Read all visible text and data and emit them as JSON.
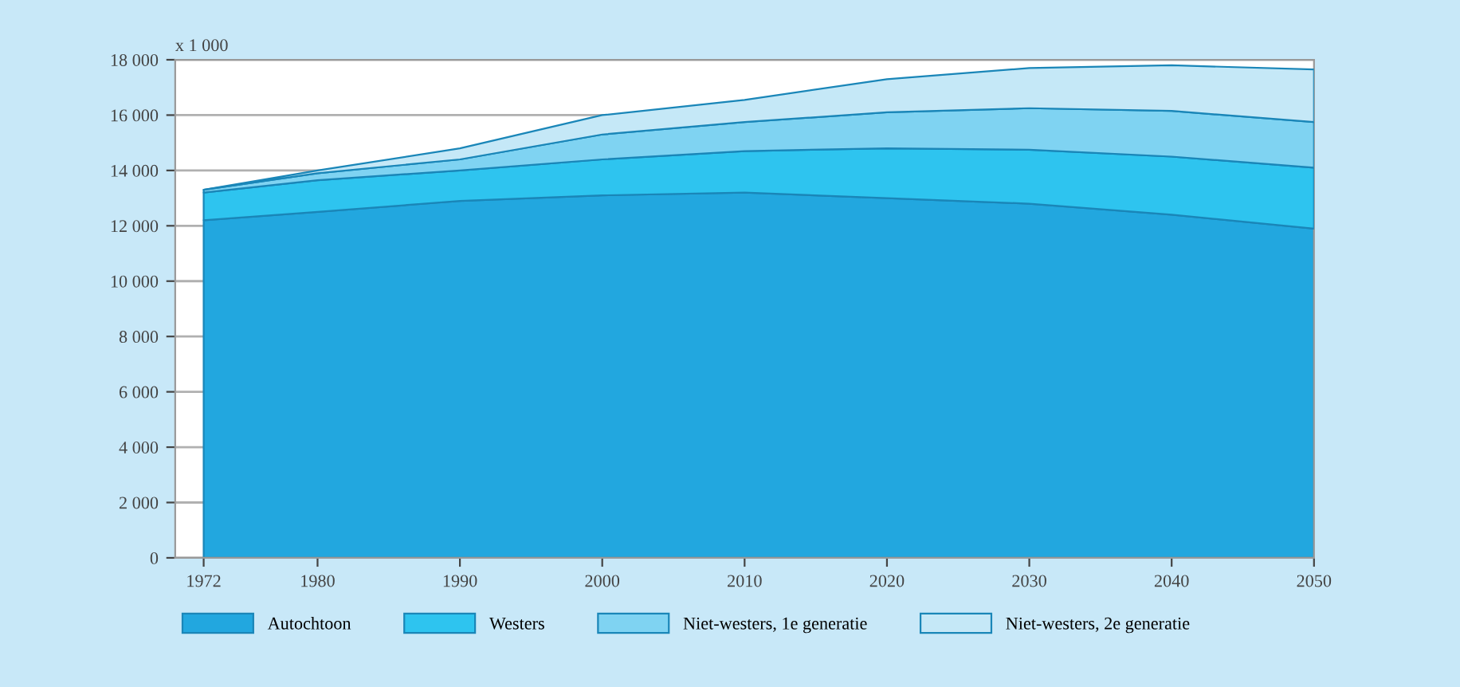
{
  "chart_data": {
    "type": "area",
    "stacked": true,
    "ylabel": "x 1 000",
    "x": [
      1972,
      1980,
      1990,
      2000,
      2010,
      2020,
      2030,
      2040,
      2050
    ],
    "series": [
      {
        "name": "Autochtoon",
        "color": "#22a7df",
        "values": [
          12200,
          12500,
          12900,
          13100,
          13200,
          13000,
          12800,
          12400,
          11900
        ]
      },
      {
        "name": "Westers",
        "color": "#2ec4ef",
        "values": [
          1000,
          1150,
          1100,
          1300,
          1500,
          1800,
          1950,
          2100,
          2200
        ]
      },
      {
        "name": "Niet-westers, 1e generatie",
        "color": "#7fd3f2",
        "values": [
          100,
          250,
          400,
          900,
          1050,
          1300,
          1500,
          1650,
          1650
        ]
      },
      {
        "name": "Niet-westers, 2e generatie",
        "color": "#c5e8f7",
        "values": [
          0,
          100,
          400,
          700,
          800,
          1200,
          1450,
          1650,
          1900
        ]
      }
    ],
    "xlim": [
      1970,
      2050
    ],
    "ylim": [
      0,
      18000
    ],
    "xticks": [
      1972,
      1980,
      1990,
      2000,
      2010,
      2020,
      2030,
      2040,
      2050
    ],
    "yticks": [
      0,
      {
        "value": 2000,
        "label": "2 000"
      },
      {
        "value": 4000,
        "label": "4 000"
      },
      {
        "value": 6000,
        "label": "6 000"
      },
      {
        "value": 8000,
        "label": "8 000"
      },
      {
        "value": 10000,
        "label": "10 000"
      },
      {
        "value": 12000,
        "label": "12 000"
      },
      {
        "value": 14000,
        "label": "14 000"
      },
      {
        "value": 16000,
        "label": "16 000"
      },
      {
        "value": 18000,
        "label": "18 000"
      }
    ],
    "grid": "y",
    "legend": "bottom"
  }
}
